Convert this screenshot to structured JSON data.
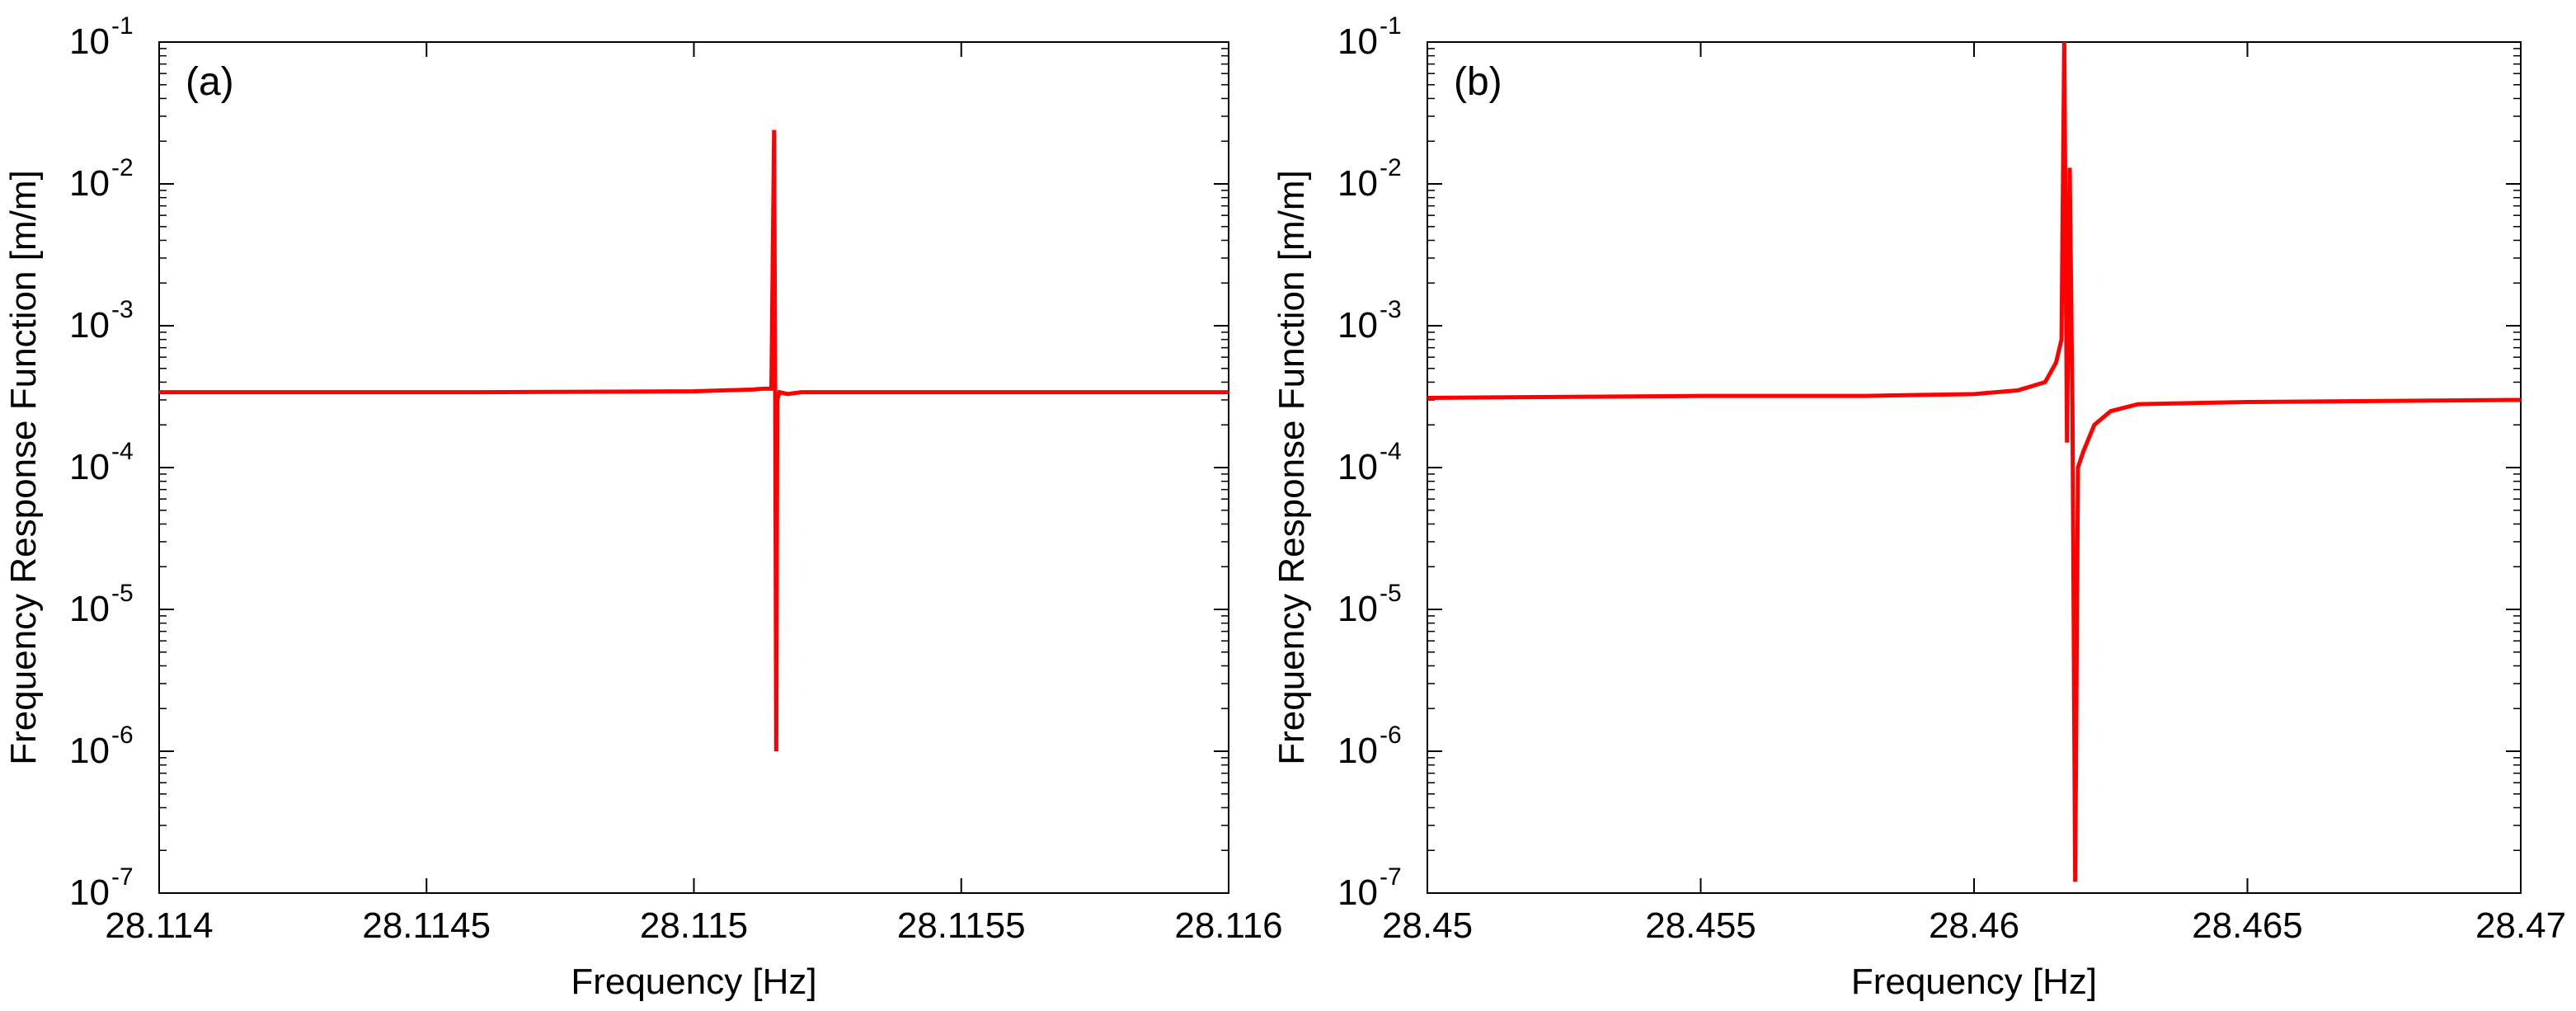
{
  "chart_data": [
    {
      "type": "line",
      "panel_label": "(a)",
      "xlabel": "Frequency [Hz]",
      "ylabel": "Frequency Response Function [m/m]",
      "xlim": [
        28.114,
        28.116
      ],
      "ylim": [
        1e-07,
        0.1
      ],
      "yscale": "log",
      "grid": false,
      "xticks": [
        28.114,
        28.1145,
        28.115,
        28.1155,
        28.116
      ],
      "xtick_labels": [
        "28.114",
        "28.1145",
        "28.115",
        "28.1155",
        "28.116"
      ],
      "yticks": [
        1e-07,
        1e-06,
        1e-05,
        0.0001,
        0.001,
        0.01,
        0.1
      ],
      "ytick_exponents": [
        "-7",
        "-6",
        "-5",
        "-4",
        "-3",
        "-2",
        "-1"
      ],
      "color": "#ff0000",
      "series": [
        {
          "x": [
            28.114,
            28.1146,
            28.115,
            28.11511,
            28.11513,
            28.115145,
            28.11515,
            28.115152,
            28.115154,
            28.115156,
            28.11516,
            28.115175,
            28.1152,
            28.1156,
            28.116
          ],
          "y": [
            0.00034,
            0.00034,
            0.000345,
            0.000355,
            0.00036,
            0.00036,
            0.024,
            0.00036,
            1e-06,
            0.0003,
            0.00034,
            0.00033,
            0.00034,
            0.00034,
            0.00034
          ]
        }
      ]
    },
    {
      "type": "line",
      "panel_label": "(b)",
      "xlabel": "Frequency [Hz]",
      "ylabel": "Frequency Response Function [m/m]",
      "xlim": [
        28.45,
        28.47
      ],
      "ylim": [
        1e-07,
        0.1
      ],
      "yscale": "log",
      "grid": false,
      "xticks": [
        28.45,
        28.455,
        28.46,
        28.465,
        28.47
      ],
      "xtick_labels": [
        "28.45",
        "28.455",
        "28.46",
        "28.465",
        "28.47"
      ],
      "yticks": [
        1e-07,
        1e-06,
        1e-05,
        0.0001,
        0.001,
        0.01,
        0.1
      ],
      "ytick_exponents": [
        "-7",
        "-6",
        "-5",
        "-4",
        "-3",
        "-2",
        "-1"
      ],
      "color": "#ff0000",
      "series": [
        {
          "x": [
            28.45,
            28.455,
            28.458,
            28.46,
            28.4608,
            28.4613,
            28.4615,
            28.4616,
            28.46165,
            28.4617,
            28.46175,
            28.4618,
            28.46185,
            28.4619,
            28.462,
            28.4622,
            28.4625,
            28.463,
            28.465,
            28.47
          ],
          "y": [
            0.00031,
            0.00032,
            0.00032,
            0.00033,
            0.00035,
            0.0004,
            0.00055,
            0.0008,
            0.1,
            0.00015,
            0.013,
            0.00025,
            1.2e-07,
            0.0001,
            0.00013,
            0.0002,
            0.00025,
            0.00028,
            0.00029,
            0.0003
          ]
        }
      ]
    }
  ]
}
